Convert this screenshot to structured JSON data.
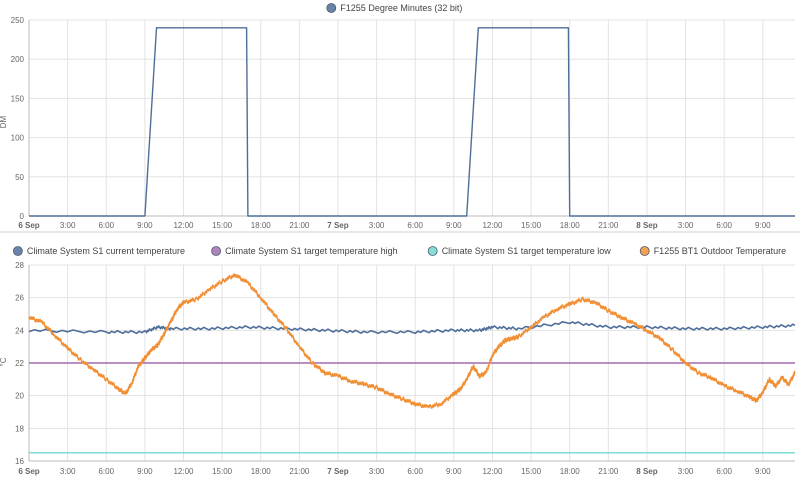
{
  "chart_data": [
    {
      "type": "line",
      "title": "",
      "ylabel": "DM",
      "ylim": [
        0,
        250
      ],
      "yticks": [
        0,
        50,
        100,
        150,
        200,
        250
      ],
      "x_range": [
        "6 Sep 00:00",
        "7 Sep 11:30"
      ],
      "x_tick_labels": [
        "6 Sep",
        "3:00",
        "6:00",
        "9:00",
        "12:00",
        "15:00",
        "18:00",
        "21:00",
        "7 Sep",
        "3:00",
        "6:00",
        "9:00",
        "12:00",
        "15:00",
        "18:00",
        "21:00",
        "8 Sep",
        "3:00",
        "6:00",
        "9:00"
      ],
      "grid": true,
      "legend_position": "top-center",
      "series": [
        {
          "name": "F1255 Degree Minutes (32 bit)",
          "color": "#4e6e99",
          "x_hours": [
            0,
            9.0,
            9.9,
            16.9,
            17.0,
            34.0,
            34.9,
            41.9,
            42.0,
            59.5
          ],
          "values": [
            0,
            0,
            240,
            240,
            0,
            0,
            240,
            240,
            0,
            0
          ]
        }
      ]
    },
    {
      "type": "line",
      "title": "",
      "ylabel": "°C",
      "ylim": [
        16,
        28
      ],
      "yticks": [
        16,
        18,
        20,
        22,
        24,
        26,
        28
      ],
      "x_tick_labels": [
        "6 Sep",
        "3:00",
        "6:00",
        "9:00",
        "12:00",
        "15:00",
        "18:00",
        "21:00",
        "7 Sep",
        "3:00",
        "6:00",
        "9:00",
        "12:00",
        "15:00",
        "18:00",
        "21:00",
        "8 Sep",
        "3:00",
        "6:00",
        "9:00"
      ],
      "grid": true,
      "legend_position": "top-center",
      "series": [
        {
          "name": "Climate System S1 current temperature",
          "color": "#4e6e99",
          "x_hours": [
            0,
            6,
            9,
            10,
            11,
            14,
            17,
            20,
            23,
            26,
            30,
            33,
            35,
            36,
            38,
            42,
            45,
            48,
            51,
            54,
            57,
            59.5
          ],
          "values": [
            24.0,
            23.9,
            23.9,
            24.2,
            24.1,
            24.1,
            24.2,
            24.1,
            24.0,
            23.9,
            23.9,
            24.0,
            24.0,
            24.2,
            24.1,
            24.5,
            24.2,
            24.2,
            24.1,
            24.1,
            24.2,
            24.3
          ]
        },
        {
          "name": "Climate System S1 target temperature high",
          "color": "#a36cb0",
          "x_hours": [
            0,
            59.5
          ],
          "values": [
            22.0,
            22.0
          ]
        },
        {
          "name": "Climate System S1 target temperature low",
          "color": "#6fd8d0",
          "x_hours": [
            0,
            59.5
          ],
          "values": [
            16.5,
            16.5
          ]
        },
        {
          "name": "F1255 BT1 Outdoor Temperature",
          "color": "#f18f35",
          "x_hours": [
            0,
            1,
            2,
            3,
            4,
            5,
            6,
            7,
            7.5,
            8,
            8.5,
            9,
            9.5,
            10,
            10.5,
            11,
            11.5,
            12,
            13,
            14,
            15,
            16,
            17,
            18,
            19,
            20,
            21,
            22,
            23,
            24,
            25,
            26,
            27,
            28,
            29,
            30,
            31,
            32,
            33,
            33.5,
            34,
            34.5,
            35,
            35.5,
            36,
            36.5,
            37,
            37.5,
            38,
            39,
            40,
            41,
            42,
            43,
            44,
            45,
            46,
            47,
            48,
            49,
            50,
            51,
            52,
            53,
            54,
            55,
            56,
            56.5,
            57,
            57.5,
            58,
            58.5,
            59,
            59.5
          ],
          "values": [
            24.8,
            24.5,
            23.7,
            22.9,
            22.2,
            21.6,
            21.0,
            20.4,
            20.1,
            20.8,
            21.8,
            22.3,
            22.8,
            23.1,
            23.8,
            24.5,
            25.3,
            25.7,
            25.9,
            26.5,
            27.0,
            27.4,
            26.9,
            26.0,
            25.0,
            24.1,
            23.0,
            22.0,
            21.4,
            21.2,
            20.9,
            20.7,
            20.5,
            20.1,
            19.8,
            19.5,
            19.3,
            19.5,
            20.1,
            20.4,
            21.0,
            21.8,
            21.2,
            21.4,
            22.5,
            23.0,
            23.4,
            23.5,
            23.6,
            24.2,
            24.8,
            25.3,
            25.6,
            25.9,
            25.7,
            25.2,
            24.8,
            24.4,
            24.0,
            23.5,
            22.8,
            22.0,
            21.4,
            21.1,
            20.6,
            20.3,
            19.9,
            19.7,
            20.2,
            21.0,
            20.6,
            21.1,
            20.7,
            21.4
          ]
        }
      ]
    }
  ]
}
